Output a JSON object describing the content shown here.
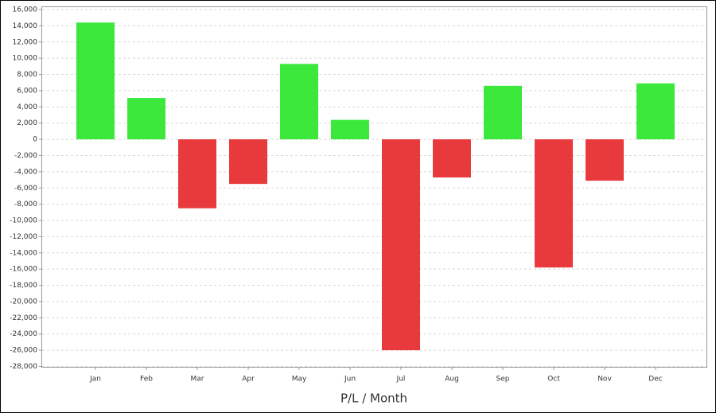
{
  "chart_data": {
    "type": "bar",
    "x_label": "P/L / Month",
    "categories": [
      "Jan",
      "Feb",
      "Mar",
      "Apr",
      "May",
      "Jun",
      "Jul",
      "Aug",
      "Sep",
      "Oct",
      "Nov",
      "Dec"
    ],
    "values": [
      14400,
      5100,
      -8500,
      -5500,
      9300,
      2400,
      -26000,
      -4700,
      6600,
      -15800,
      -5100,
      6900
    ],
    "positive_color": "#3de83d",
    "negative_color": "#e8393d",
    "ylim": [
      -28000,
      16000
    ],
    "yticks": [
      {
        "value": -28000,
        "label": "-28,000"
      },
      {
        "value": -26000,
        "label": "-26,000"
      },
      {
        "value": -24000,
        "label": "-24,000"
      },
      {
        "value": -22000,
        "label": "-22,000"
      },
      {
        "value": -20000,
        "label": "-20,000"
      },
      {
        "value": -18000,
        "label": "-18,000"
      },
      {
        "value": -16000,
        "label": "-16,000"
      },
      {
        "value": -14000,
        "label": "-14,000"
      },
      {
        "value": -12000,
        "label": "-12,000"
      },
      {
        "value": -10000,
        "label": "-10,000"
      },
      {
        "value": -8000,
        "label": "-8,000"
      },
      {
        "value": -6000,
        "label": "-6,000"
      },
      {
        "value": -4000,
        "label": "-4,000"
      },
      {
        "value": -2000,
        "label": "-2,000"
      },
      0,
      {
        "value": 2000,
        "label": "2,000"
      },
      {
        "value": 4000,
        "label": "4,000"
      },
      {
        "value": 6000,
        "label": "6,000"
      },
      {
        "value": 8000,
        "label": "8,000"
      },
      {
        "value": 10000,
        "label": "10,000"
      },
      {
        "value": 12000,
        "label": "12,000"
      },
      {
        "value": 14000,
        "label": "14,000"
      },
      {
        "value": 16000,
        "label": "16,000"
      }
    ],
    "grid": true
  }
}
